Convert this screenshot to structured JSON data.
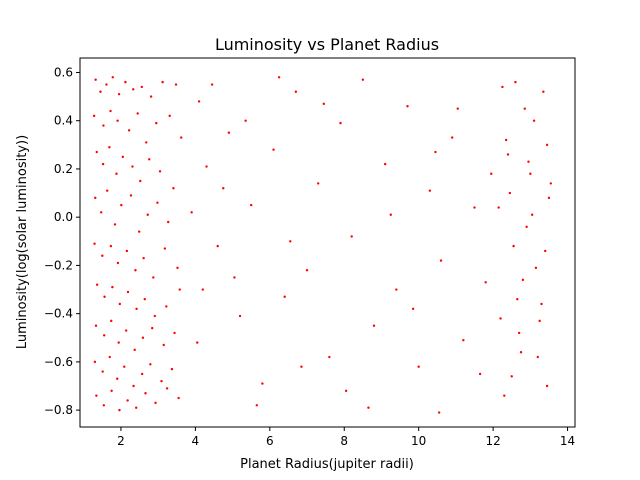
{
  "chart_data": {
    "type": "scatter",
    "title": "Luminosity vs Planet Radius",
    "xlabel": "Planet Radius(jupiter radii)",
    "ylabel": "Luminosity(log(solar luminosity))",
    "xlim": [
      0.9,
      14.2
    ],
    "ylim": [
      -0.87,
      0.66
    ],
    "x_ticks": [
      2,
      4,
      6,
      8,
      10,
      12,
      14
    ],
    "y_ticks": [
      -0.8,
      -0.6,
      -0.4,
      -0.2,
      0.0,
      0.2,
      0.4,
      0.6
    ],
    "x_tick_labels": [
      "2",
      "4",
      "6",
      "8",
      "10",
      "12",
      "14"
    ],
    "y_tick_labels": [
      "−0.8",
      "−0.6",
      "−0.4",
      "−0.2",
      "0.0",
      "0.2",
      "0.4",
      "0.6"
    ],
    "grid": false,
    "marker_color": "#ff0000",
    "series": [
      {
        "points": [
          [
            1.32,
            0.57
          ],
          [
            1.45,
            0.52
          ],
          [
            1.61,
            0.55
          ],
          [
            1.78,
            0.58
          ],
          [
            1.95,
            0.51
          ],
          [
            2.12,
            0.56
          ],
          [
            2.33,
            0.53
          ],
          [
            2.56,
            0.54
          ],
          [
            2.81,
            0.5
          ],
          [
            3.12,
            0.56
          ],
          [
            3.48,
            0.55
          ],
          [
            1.28,
            0.42
          ],
          [
            1.53,
            0.38
          ],
          [
            1.72,
            0.44
          ],
          [
            1.91,
            0.4
          ],
          [
            2.22,
            0.36
          ],
          [
            2.45,
            0.43
          ],
          [
            2.68,
            0.31
          ],
          [
            2.95,
            0.39
          ],
          [
            3.31,
            0.42
          ],
          [
            3.62,
            0.33
          ],
          [
            1.35,
            0.27
          ],
          [
            1.52,
            0.22
          ],
          [
            1.69,
            0.29
          ],
          [
            1.88,
            0.18
          ],
          [
            2.05,
            0.25
          ],
          [
            2.31,
            0.21
          ],
          [
            2.52,
            0.15
          ],
          [
            2.76,
            0.24
          ],
          [
            3.05,
            0.19
          ],
          [
            3.41,
            0.12
          ],
          [
            1.31,
            0.08
          ],
          [
            1.47,
            0.02
          ],
          [
            1.63,
            0.11
          ],
          [
            1.84,
            -0.03
          ],
          [
            2.01,
            0.05
          ],
          [
            2.27,
            0.09
          ],
          [
            2.49,
            -0.06
          ],
          [
            2.72,
            0.01
          ],
          [
            2.98,
            0.06
          ],
          [
            3.27,
            -0.02
          ],
          [
            1.29,
            -0.11
          ],
          [
            1.5,
            -0.16
          ],
          [
            1.73,
            -0.12
          ],
          [
            1.92,
            -0.19
          ],
          [
            2.16,
            -0.14
          ],
          [
            2.39,
            -0.22
          ],
          [
            2.61,
            -0.17
          ],
          [
            2.87,
            -0.25
          ],
          [
            3.18,
            -0.13
          ],
          [
            3.52,
            -0.21
          ],
          [
            1.36,
            -0.28
          ],
          [
            1.56,
            -0.33
          ],
          [
            1.77,
            -0.29
          ],
          [
            1.97,
            -0.36
          ],
          [
            2.19,
            -0.31
          ],
          [
            2.42,
            -0.38
          ],
          [
            2.64,
            -0.34
          ],
          [
            2.91,
            -0.41
          ],
          [
            3.22,
            -0.37
          ],
          [
            3.58,
            -0.3
          ],
          [
            1.33,
            -0.45
          ],
          [
            1.55,
            -0.49
          ],
          [
            1.74,
            -0.43
          ],
          [
            1.94,
            -0.52
          ],
          [
            2.14,
            -0.47
          ],
          [
            2.37,
            -0.55
          ],
          [
            2.59,
            -0.5
          ],
          [
            2.84,
            -0.46
          ],
          [
            3.15,
            -0.53
          ],
          [
            3.44,
            -0.48
          ],
          [
            1.3,
            -0.6
          ],
          [
            1.51,
            -0.64
          ],
          [
            1.7,
            -0.58
          ],
          [
            1.9,
            -0.67
          ],
          [
            2.09,
            -0.62
          ],
          [
            2.34,
            -0.7
          ],
          [
            2.57,
            -0.65
          ],
          [
            2.79,
            -0.61
          ],
          [
            3.09,
            -0.68
          ],
          [
            3.37,
            -0.63
          ],
          [
            1.34,
            -0.74
          ],
          [
            1.54,
            -0.78
          ],
          [
            1.75,
            -0.72
          ],
          [
            1.96,
            -0.8
          ],
          [
            2.18,
            -0.76
          ],
          [
            2.41,
            -0.79
          ],
          [
            2.66,
            -0.73
          ],
          [
            2.93,
            -0.77
          ],
          [
            3.24,
            -0.71
          ],
          [
            3.55,
            -0.75
          ],
          [
            4.1,
            0.48
          ],
          [
            4.3,
            0.21
          ],
          [
            4.6,
            -0.12
          ],
          [
            4.9,
            0.35
          ],
          [
            5.2,
            -0.41
          ],
          [
            5.5,
            0.05
          ],
          [
            5.8,
            -0.69
          ],
          [
            6.1,
            0.28
          ],
          [
            6.4,
            -0.33
          ],
          [
            6.7,
            0.52
          ],
          [
            7.0,
            -0.22
          ],
          [
            7.3,
            0.14
          ],
          [
            7.6,
            -0.58
          ],
          [
            7.9,
            0.39
          ],
          [
            8.2,
            -0.08
          ],
          [
            8.5,
            0.57
          ],
          [
            8.8,
            -0.45
          ],
          [
            9.1,
            0.22
          ],
          [
            9.4,
            -0.3
          ],
          [
            9.7,
            0.46
          ],
          [
            10.0,
            -0.62
          ],
          [
            10.3,
            0.11
          ],
          [
            10.6,
            -0.18
          ],
          [
            10.9,
            0.33
          ],
          [
            11.2,
            -0.51
          ],
          [
            11.5,
            0.04
          ],
          [
            11.8,
            -0.27
          ],
          [
            11.95,
            0.18
          ],
          [
            4.05,
            -0.52
          ],
          [
            4.45,
            0.55
          ],
          [
            5.05,
            -0.25
          ],
          [
            5.65,
            -0.78
          ],
          [
            6.25,
            0.58
          ],
          [
            6.85,
            -0.62
          ],
          [
            7.45,
            0.47
          ],
          [
            8.05,
            -0.72
          ],
          [
            8.65,
            -0.79
          ],
          [
            9.25,
            0.01
          ],
          [
            9.85,
            -0.38
          ],
          [
            10.45,
            0.27
          ],
          [
            10.55,
            -0.81
          ],
          [
            11.05,
            0.45
          ],
          [
            11.65,
            -0.65
          ],
          [
            3.9,
            0.02
          ],
          [
            4.2,
            -0.3
          ],
          [
            4.75,
            0.12
          ],
          [
            5.35,
            0.4
          ],
          [
            6.55,
            -0.1
          ],
          [
            12.25,
            0.54
          ],
          [
            12.35,
            0.32
          ],
          [
            12.45,
            0.1
          ],
          [
            12.55,
            -0.12
          ],
          [
            12.65,
            -0.34
          ],
          [
            12.75,
            -0.56
          ],
          [
            12.85,
            0.45
          ],
          [
            12.95,
            0.23
          ],
          [
            13.05,
            0.01
          ],
          [
            13.15,
            -0.21
          ],
          [
            13.25,
            -0.43
          ],
          [
            13.35,
            0.52
          ],
          [
            13.45,
            0.3
          ],
          [
            13.5,
            0.08
          ],
          [
            13.4,
            -0.14
          ],
          [
            13.3,
            -0.36
          ],
          [
            13.2,
            -0.58
          ],
          [
            13.1,
            0.4
          ],
          [
            13.0,
            0.18
          ],
          [
            12.9,
            -0.04
          ],
          [
            12.8,
            -0.26
          ],
          [
            12.7,
            -0.48
          ],
          [
            12.6,
            0.56
          ],
          [
            12.5,
            -0.66
          ],
          [
            12.4,
            0.26
          ],
          [
            12.3,
            -0.74
          ],
          [
            13.45,
            -0.7
          ],
          [
            13.55,
            0.14
          ],
          [
            12.2,
            -0.42
          ],
          [
            12.15,
            0.04
          ]
        ]
      }
    ]
  }
}
